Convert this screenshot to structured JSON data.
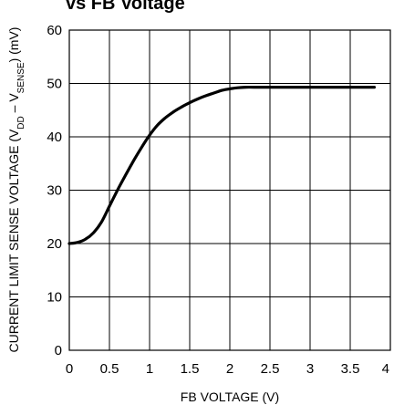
{
  "chart_data": {
    "type": "line",
    "title": "vs FB Voltage",
    "xlabel": "FB VOLTAGE (V)",
    "ylabel_parts": {
      "pre": "CURRENT LIMIT SENSE VOLTAGE (V",
      "sub1": "DD",
      "mid": " – V",
      "sub2": "SENSE",
      "post": ") (mV)"
    },
    "xlim": [
      0,
      4
    ],
    "ylim": [
      0,
      60
    ],
    "x_ticks": [
      "0",
      "0.5",
      "1",
      "1.5",
      "2",
      "2.5",
      "3",
      "3.5",
      "4"
    ],
    "y_ticks": [
      "0",
      "10",
      "20",
      "30",
      "40",
      "50",
      "60"
    ],
    "grid": true,
    "series": [
      {
        "x": [
          0,
          0.1,
          0.2,
          0.3,
          0.4,
          0.5,
          0.6,
          0.7,
          0.8,
          0.9,
          1.0,
          1.1,
          1.2,
          1.3,
          1.4,
          1.5,
          1.6,
          1.7,
          1.8,
          1.9,
          2.0,
          2.1,
          2.2,
          2.3,
          2.5,
          3.0,
          3.5,
          3.8
        ],
        "y": [
          20,
          20.2,
          20.8,
          22.0,
          24.0,
          27.0,
          30.0,
          32.8,
          35.5,
          38.0,
          40.3,
          42.2,
          43.6,
          44.7,
          45.6,
          46.4,
          47.1,
          47.7,
          48.2,
          48.7,
          49.0,
          49.2,
          49.3,
          49.3,
          49.3,
          49.3,
          49.3,
          49.3
        ]
      }
    ]
  }
}
